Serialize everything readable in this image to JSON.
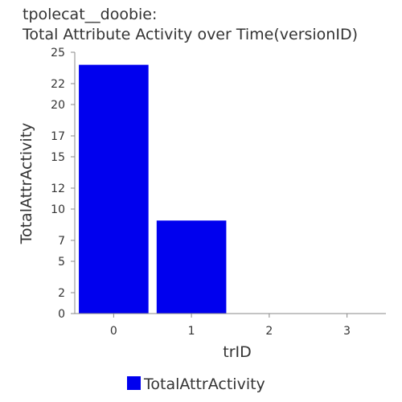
{
  "chart_data": {
    "type": "bar",
    "title_line1": "tpolecat__doobie:",
    "title_line2": "Total Attribute Activity over Time(versionID)",
    "xlabel": "trID",
    "ylabel": "TotalAttrActivity",
    "categories": [
      "0",
      "1",
      "2",
      "3"
    ],
    "series": [
      {
        "name": "TotalAttrActivity",
        "values": [
          23.8,
          8.9,
          0,
          0
        ],
        "color": "#0000ee"
      }
    ],
    "ylim": [
      0,
      25
    ],
    "yticks": [
      0,
      2,
      5,
      7,
      10,
      12,
      15,
      17,
      20,
      22,
      25
    ],
    "grid": false,
    "legend_position": "bottom"
  }
}
